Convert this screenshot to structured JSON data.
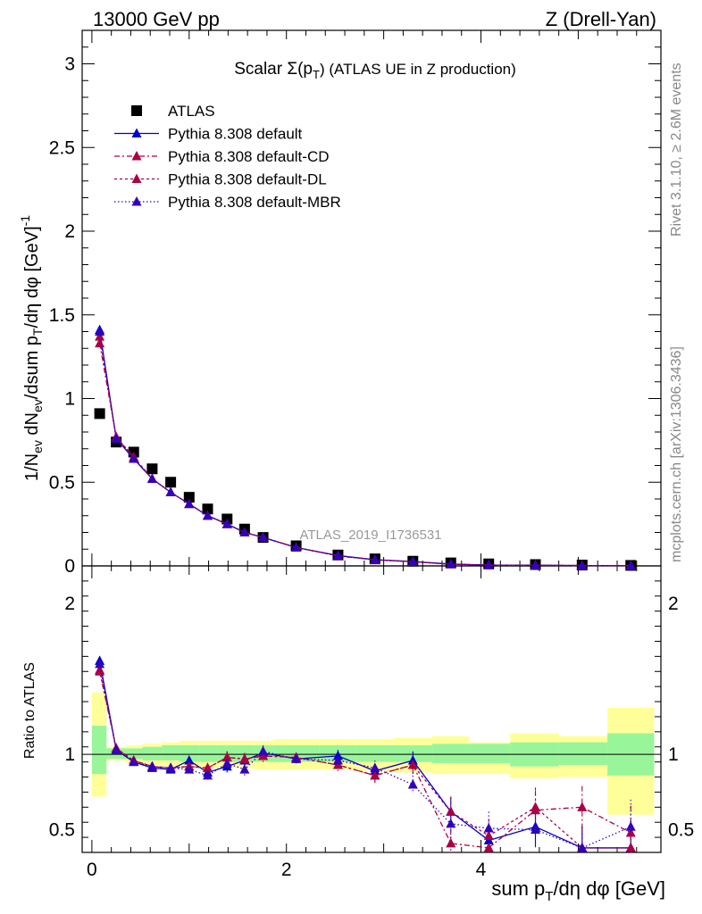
{
  "header": {
    "left": "13000 GeV pp",
    "right": "Z (Drell-Yan)",
    "title": "Scalar Σ(p",
    "title_sub": "T",
    "title_rest": ") (ATLAS UE in Z production)"
  },
  "side": {
    "rivet": "Rivet 3.1.10, ≥ 2.6M events",
    "mcplots": "mcplots.cern.ch [arXiv:1306.3436]"
  },
  "watermark": "ATLAS_2019_I1736531",
  "colors": {
    "data": "#000000",
    "default": "#0000cc",
    "cd": "#aa0044",
    "dl": "#aa0044",
    "mbr": "#3300bb",
    "band_inner": "#99f599",
    "band_outer": "#ffff99"
  },
  "chart_data": [
    {
      "type": "scatter",
      "panel": "main",
      "ylabel": "1/N_ev dN_ev/dsum p_T/dη dφ [GeV]^-1",
      "xlabel": "sum p_T/dη dφ [GeV]",
      "xlim": [
        -0.1,
        5.85
      ],
      "ylim": [
        0,
        3.2
      ],
      "yticks": [
        "0",
        "0.5",
        "1",
        "1.5",
        "2",
        "2.5",
        "3"
      ],
      "x": [
        0.08,
        0.25,
        0.43,
        0.62,
        0.81,
        1.0,
        1.19,
        1.39,
        1.57,
        1.76,
        2.1,
        2.53,
        2.91,
        3.3,
        3.69,
        4.08,
        4.56,
        5.04,
        5.54
      ],
      "series": [
        {
          "name": "ATLAS",
          "style": "data",
          "values": [
            0.91,
            0.74,
            0.68,
            0.58,
            0.5,
            0.41,
            0.34,
            0.28,
            0.22,
            0.17,
            0.12,
            0.065,
            0.042,
            0.028,
            0.018,
            0.012,
            0.008,
            0.005,
            0.003
          ]
        },
        {
          "name": "Pythia 8.308 default",
          "style": "default",
          "values": [
            1.41,
            0.76,
            0.64,
            0.52,
            0.44,
            0.37,
            0.3,
            0.25,
            0.2,
            0.17,
            0.11,
            0.062,
            0.037,
            0.026,
            0.011,
            0.005,
            0.004,
            0.002,
            0.001
          ]
        },
        {
          "name": "Pythia 8.308 default-CD",
          "style": "cd",
          "values": [
            1.33,
            0.77,
            0.65,
            0.52,
            0.44,
            0.37,
            0.3,
            0.25,
            0.2,
            0.17,
            0.11,
            0.06,
            0.036,
            0.025,
            0.01,
            0.005,
            0.004,
            0.002,
            0.001
          ]
        },
        {
          "name": "Pythia 8.308 default-DL",
          "style": "dl",
          "values": [
            1.37,
            0.77,
            0.65,
            0.52,
            0.44,
            0.37,
            0.3,
            0.25,
            0.2,
            0.17,
            0.11,
            0.06,
            0.036,
            0.025,
            0.01,
            0.005,
            0.004,
            0.002,
            0.001
          ]
        },
        {
          "name": "Pythia 8.308 default-MBR",
          "style": "mbr",
          "values": [
            1.4,
            0.76,
            0.64,
            0.52,
            0.44,
            0.37,
            0.3,
            0.25,
            0.2,
            0.17,
            0.11,
            0.06,
            0.036,
            0.025,
            0.01,
            0.005,
            0.004,
            0.002,
            0.001
          ]
        }
      ]
    },
    {
      "type": "line",
      "panel": "ratio",
      "ylabel": "Ratio to ATLAS",
      "xlabel": "sum p_T/dη dφ [GeV]",
      "xlim": [
        -0.1,
        5.85
      ],
      "ylim": [
        0.35,
        2.25
      ],
      "yticks": [
        "0.5",
        "1",
        "2"
      ],
      "xticks": [
        "0",
        "2",
        "4"
      ],
      "x": [
        0.08,
        0.25,
        0.43,
        0.62,
        0.81,
        1.0,
        1.19,
        1.39,
        1.57,
        1.76,
        2.1,
        2.53,
        2.91,
        3.3,
        3.69,
        4.08,
        4.56,
        5.04,
        5.54
      ],
      "bands": {
        "edges": [
          0.0,
          0.15,
          0.35,
          0.52,
          0.72,
          0.9,
          1.1,
          1.29,
          1.48,
          1.67,
          1.86,
          2.34,
          2.72,
          3.1,
          3.5,
          3.88,
          4.3,
          4.8,
          5.3,
          5.78
        ],
        "inner": [
          [
            0.87,
            1.19
          ],
          [
            0.97,
            1.04
          ],
          [
            0.97,
            1.04
          ],
          [
            0.96,
            1.05
          ],
          [
            0.96,
            1.06
          ],
          [
            0.95,
            1.06
          ],
          [
            0.95,
            1.06
          ],
          [
            0.95,
            1.06
          ],
          [
            0.95,
            1.06
          ],
          [
            0.95,
            1.06
          ],
          [
            0.95,
            1.06
          ],
          [
            0.95,
            1.06
          ],
          [
            0.95,
            1.06
          ],
          [
            0.95,
            1.06
          ],
          [
            0.94,
            1.07
          ],
          [
            0.94,
            1.07
          ],
          [
            0.92,
            1.08
          ],
          [
            0.93,
            1.08
          ],
          [
            0.86,
            1.14
          ]
        ],
        "outer": [
          [
            0.72,
            1.41
          ],
          [
            0.96,
            1.05
          ],
          [
            0.94,
            1.06
          ],
          [
            0.93,
            1.07
          ],
          [
            0.92,
            1.08
          ],
          [
            0.91,
            1.09
          ],
          [
            0.91,
            1.09
          ],
          [
            0.91,
            1.09
          ],
          [
            0.91,
            1.09
          ],
          [
            0.9,
            1.09
          ],
          [
            0.9,
            1.1
          ],
          [
            0.9,
            1.1
          ],
          [
            0.89,
            1.1
          ],
          [
            0.88,
            1.11
          ],
          [
            0.87,
            1.12
          ],
          [
            0.87,
            1.08
          ],
          [
            0.84,
            1.14
          ],
          [
            0.85,
            1.12
          ],
          [
            0.6,
            1.31
          ]
        ]
      },
      "series": [
        {
          "name": "Pythia 8.308 default",
          "style": "default",
          "values": [
            1.62,
            1.03,
            0.95,
            0.91,
            0.9,
            0.96,
            0.88,
            0.92,
            0.96,
            1.01,
            0.97,
            0.99,
            0.89,
            0.96,
            0.62,
            0.43,
            0.52,
            0.38,
            0.38
          ]
        },
        {
          "name": "Pythia 8.308 default-CD",
          "style": "cd",
          "values": [
            1.55,
            1.04,
            0.96,
            0.92,
            0.91,
            0.92,
            0.91,
            0.98,
            0.97,
            0.99,
            0.98,
            0.93,
            0.86,
            0.93,
            0.41,
            0.38,
            0.63,
            0.65,
            0.48
          ]
        },
        {
          "name": "Pythia 8.308 default-DL",
          "style": "dl",
          "values": [
            1.56,
            1.04,
            0.96,
            0.92,
            0.91,
            0.92,
            0.91,
            0.98,
            0.97,
            0.99,
            0.98,
            0.93,
            0.86,
            0.93,
            0.62,
            0.46,
            0.65,
            0.38,
            0.38
          ]
        },
        {
          "name": "Pythia 8.308 default-MBR",
          "style": "mbr",
          "values": [
            1.6,
            1.03,
            0.95,
            0.92,
            0.91,
            0.9,
            0.86,
            0.94,
            0.9,
            1.02,
            0.97,
            0.96,
            0.91,
            0.8,
            0.54,
            0.51,
            0.5,
            0.38,
            0.52
          ]
        }
      ]
    }
  ]
}
